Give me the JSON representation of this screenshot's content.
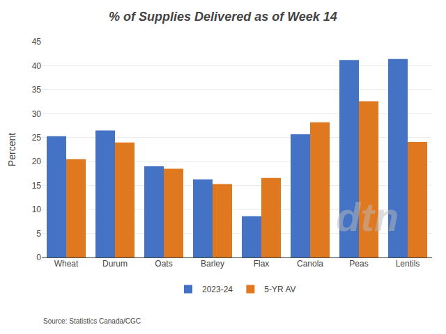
{
  "chart_data": {
    "type": "bar",
    "title": "% of Supplies Delivered as of Week 14",
    "ylabel": "Percent",
    "categories": [
      "Wheat",
      "Durum",
      "Oats",
      "Barley",
      "Flax",
      "Canola",
      "Peas",
      "Lentils"
    ],
    "series": [
      {
        "name": "2023-24",
        "color": "#4472C4",
        "values": [
          25.3,
          26.5,
          19.0,
          16.3,
          8.6,
          25.7,
          41.2,
          41.4
        ]
      },
      {
        "name": "5-YR AV",
        "color": "#E07820",
        "values": [
          20.5,
          24.0,
          18.5,
          15.3,
          16.6,
          28.2,
          32.6,
          24.1
        ]
      }
    ],
    "ylim": [
      0,
      45
    ],
    "yticks": [
      0,
      5,
      10,
      15,
      20,
      25,
      30,
      35,
      40,
      45
    ],
    "grid": true,
    "legend": "bottom",
    "annotations": [
      "Source: Statistics Canada/CGC",
      "dtn"
    ]
  }
}
